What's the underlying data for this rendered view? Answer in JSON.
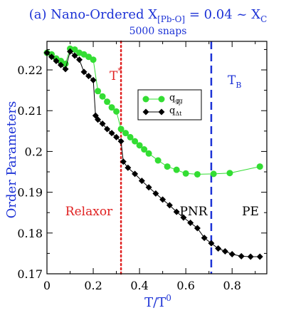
{
  "header": {
    "title": "(a)  Nano-Ordered X",
    "title_sub": "[Pb-O]",
    "title_mid": " = 0.04 ~ X",
    "title_sub2": "C",
    "subtitle": "5000 snaps"
  },
  "chart_data": {
    "type": "line",
    "xlabel": "T/T",
    "xlabel_sup": "0",
    "ylabel": "Order Parameters",
    "xlim": [
      0,
      0.95
    ],
    "ylim": [
      0.17,
      0.227
    ],
    "xticks": [
      0,
      0.2,
      0.4,
      0.6,
      0.8
    ],
    "xtick_labels": [
      "0",
      "0.2",
      "0.4",
      "0.6",
      "0.8"
    ],
    "yticks": [
      0.17,
      0.18,
      0.19,
      0.2,
      0.21,
      0.22
    ],
    "ytick_labels": [
      "0.17",
      "0.18",
      "0.19",
      "0.2",
      "0.21",
      "0.22"
    ],
    "grid": false,
    "legend_position": "top-center",
    "series": [
      {
        "name": "q",
        "name_sub": "gg",
        "name_sub2": "ξ",
        "color": "#33dd33",
        "marker": "circle",
        "x": [
          0.0,
          0.02,
          0.04,
          0.06,
          0.08,
          0.1,
          0.12,
          0.14,
          0.16,
          0.18,
          0.2,
          0.22,
          0.24,
          0.26,
          0.28,
          0.3,
          0.32,
          0.34,
          0.36,
          0.38,
          0.4,
          0.42,
          0.44,
          0.48,
          0.52,
          0.56,
          0.6,
          0.65,
          0.72,
          0.79,
          0.92
        ],
        "y": [
          0.2242,
          0.2238,
          0.2228,
          0.2222,
          0.2215,
          0.2252,
          0.225,
          0.2242,
          0.2238,
          0.2232,
          0.2225,
          0.2148,
          0.2135,
          0.2122,
          0.2108,
          0.2098,
          0.2055,
          0.2045,
          0.2035,
          0.2025,
          0.2015,
          0.2005,
          0.1995,
          0.1978,
          0.1963,
          0.1955,
          0.1946,
          0.1944,
          0.1945,
          0.1947,
          0.1963
        ]
      },
      {
        "name": "q",
        "name_sub": "Δt",
        "name_sub2": "",
        "color": "#000000",
        "marker": "diamond",
        "x": [
          0.0,
          0.02,
          0.04,
          0.06,
          0.08,
          0.1,
          0.12,
          0.14,
          0.16,
          0.18,
          0.2,
          0.21,
          0.22,
          0.24,
          0.26,
          0.28,
          0.3,
          0.32,
          0.33,
          0.35,
          0.38,
          0.41,
          0.44,
          0.47,
          0.5,
          0.53,
          0.56,
          0.59,
          0.62,
          0.65,
          0.68,
          0.71,
          0.74,
          0.77,
          0.8,
          0.84,
          0.88,
          0.92
        ],
        "y": [
          0.2242,
          0.2232,
          0.2222,
          0.2212,
          0.2202,
          0.2245,
          0.2235,
          0.2225,
          0.2195,
          0.2185,
          0.2175,
          0.2088,
          0.2078,
          0.2068,
          0.2055,
          0.2045,
          0.2035,
          0.2025,
          0.1975,
          0.196,
          0.1945,
          0.1928,
          0.1912,
          0.1897,
          0.1882,
          0.1868,
          0.1852,
          0.1838,
          0.1825,
          0.1812,
          0.1788,
          0.1775,
          0.1762,
          0.1755,
          0.1748,
          0.1743,
          0.1742,
          0.1742
        ]
      }
    ],
    "vlines": [
      {
        "x": 0.32,
        "color": "#e02020",
        "style": "dotted",
        "label": "T",
        "label_sup": "*"
      },
      {
        "x": 0.71,
        "color": "#1c32d6",
        "style": "dashed",
        "label": "T",
        "label_sub": "B"
      }
    ],
    "annotations": [
      {
        "text": "Relaxor",
        "color": "#e02020"
      },
      {
        "text": "PNR",
        "color": "#000000"
      },
      {
        "text": "PE",
        "color": "#000000"
      }
    ]
  }
}
